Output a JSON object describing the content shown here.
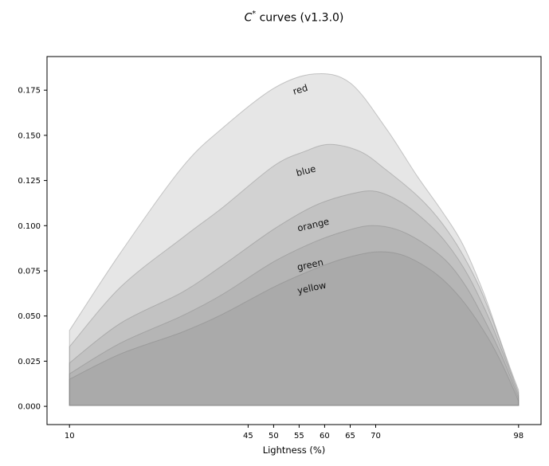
{
  "title": {
    "c": "C",
    "sup": "*",
    "rest": " curves (v1.3.0)"
  },
  "chart_data": {
    "type": "area",
    "title": "C* curves (v1.3.0)",
    "xlabel": "Lightness (%)",
    "ylabel": "",
    "grid": false,
    "legend": "inline-curve-labels",
    "xlim": [
      5.6,
      102.4
    ],
    "ylim": [
      -0.0101,
      0.1936
    ],
    "x_ticks": {
      "values": [
        10,
        45,
        50,
        55,
        60,
        65,
        70,
        98
      ],
      "labels": [
        "10",
        "45",
        "50",
        "55",
        "60",
        "65",
        "70",
        "98"
      ]
    },
    "y_ticks": {
      "values": [
        0,
        0.025,
        0.05,
        0.075,
        0.1,
        0.125,
        0.15,
        0.175
      ],
      "labels": [
        "0.000",
        "0.025",
        "0.050",
        "0.075",
        "0.100",
        "0.125",
        "0.150",
        "0.175"
      ]
    },
    "baseline": 0.0005,
    "fill": {
      "color": "#808080",
      "opacity": 0.2,
      "edge_opacity": 0.4
    },
    "series": [
      {
        "name": "red",
        "label_at": [
          55.4,
          0.1737
        ],
        "label_rot": -17,
        "points": [
          [
            10,
            0.042
          ],
          [
            20,
            0.085
          ],
          [
            32,
            0.132
          ],
          [
            40,
            0.154
          ],
          [
            50,
            0.176
          ],
          [
            58,
            0.184
          ],
          [
            65,
            0.179
          ],
          [
            72,
            0.154
          ],
          [
            78,
            0.128
          ],
          [
            83,
            0.108
          ],
          [
            87,
            0.09
          ],
          [
            91,
            0.064
          ],
          [
            94,
            0.04
          ],
          [
            96.5,
            0.02
          ],
          [
            98,
            0.009
          ]
        ]
      },
      {
        "name": "blue",
        "label_at": [
          56.5,
          0.1287
        ],
        "label_rot": -14,
        "points": [
          [
            10,
            0.033
          ],
          [
            20,
            0.066
          ],
          [
            32,
            0.093
          ],
          [
            40,
            0.11
          ],
          [
            50,
            0.133
          ],
          [
            56,
            0.141
          ],
          [
            61,
            0.145
          ],
          [
            67,
            0.141
          ],
          [
            72,
            0.131
          ],
          [
            78,
            0.117
          ],
          [
            82,
            0.105
          ],
          [
            86,
            0.089
          ],
          [
            90,
            0.068
          ],
          [
            93,
            0.047
          ],
          [
            96,
            0.023
          ],
          [
            98,
            0.0075
          ]
        ]
      },
      {
        "name": "orange",
        "label_at": [
          57.9,
          0.0988
        ],
        "label_rot": -13,
        "points": [
          [
            10,
            0.024
          ],
          [
            20,
            0.046
          ],
          [
            32,
            0.063
          ],
          [
            40,
            0.078
          ],
          [
            50,
            0.098
          ],
          [
            58,
            0.111
          ],
          [
            65,
            0.1175
          ],
          [
            70,
            0.119
          ],
          [
            75,
            0.113
          ],
          [
            80,
            0.102
          ],
          [
            84,
            0.09
          ],
          [
            88,
            0.073
          ],
          [
            92,
            0.05
          ],
          [
            95,
            0.029
          ],
          [
            98,
            0.006
          ]
        ]
      },
      {
        "name": "green",
        "label_at": [
          57.3,
          0.0767
        ],
        "label_rot": -12,
        "points": [
          [
            10,
            0.018
          ],
          [
            20,
            0.035
          ],
          [
            32,
            0.05
          ],
          [
            40,
            0.062
          ],
          [
            50,
            0.08
          ],
          [
            58,
            0.091
          ],
          [
            64,
            0.097
          ],
          [
            69,
            0.1
          ],
          [
            74,
            0.098
          ],
          [
            79,
            0.091
          ],
          [
            84,
            0.08
          ],
          [
            88,
            0.065
          ],
          [
            92,
            0.044
          ],
          [
            95,
            0.026
          ],
          [
            98,
            0.0045
          ]
        ]
      },
      {
        "name": "yellow",
        "label_at": [
          57.6,
          0.0639
        ],
        "label_rot": -12,
        "points": [
          [
            10,
            0.015
          ],
          [
            20,
            0.029
          ],
          [
            32,
            0.041
          ],
          [
            40,
            0.051
          ],
          [
            50,
            0.066
          ],
          [
            58,
            0.076
          ],
          [
            64,
            0.082
          ],
          [
            70,
            0.0855
          ],
          [
            75,
            0.084
          ],
          [
            80,
            0.077
          ],
          [
            84,
            0.068
          ],
          [
            88,
            0.055
          ],
          [
            92,
            0.038
          ],
          [
            95,
            0.022
          ],
          [
            98,
            0.003
          ]
        ]
      }
    ]
  }
}
